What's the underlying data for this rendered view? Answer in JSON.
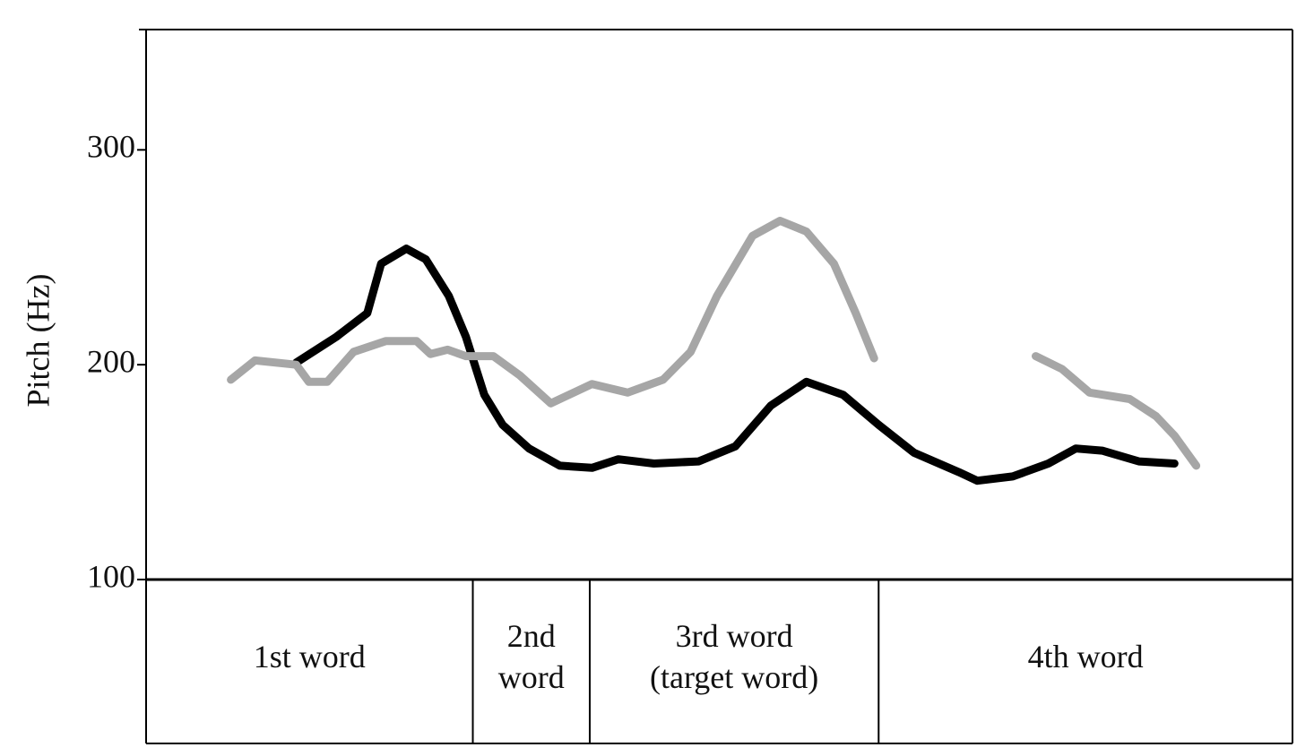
{
  "chart_data": {
    "type": "line",
    "y_label": "Pitch (Hz)",
    "ylim": [
      100,
      356
    ],
    "yticks": [
      100,
      200,
      300
    ],
    "xlim": [
      0,
      1
    ],
    "series": [
      {
        "color": "#000000",
        "x": [
          0.131,
          0.166,
          0.193,
          0.205,
          0.227,
          0.244,
          0.264,
          0.279,
          0.295,
          0.311,
          0.334,
          0.361,
          0.389,
          0.412,
          0.443,
          0.482,
          0.514,
          0.545,
          0.576,
          0.608,
          0.639,
          0.67,
          0.709,
          0.725,
          0.756,
          0.787,
          0.811,
          0.834,
          0.866,
          0.897
        ],
        "values": [
          201,
          213,
          224,
          247,
          254,
          249,
          232,
          213,
          186,
          172,
          161,
          153,
          152,
          156,
          154,
          155,
          162,
          181,
          192,
          186,
          172,
          159,
          150,
          146,
          148,
          154,
          161,
          160,
          155,
          154
        ]
      },
      {
        "color": "#a6a6a6",
        "x": [
          0.074,
          0.095,
          0.131,
          0.142,
          0.158,
          0.181,
          0.209,
          0.236,
          0.248,
          0.263,
          0.279,
          0.303,
          0.326,
          0.353,
          0.389,
          0.42,
          0.451,
          0.475,
          0.498,
          0.529,
          0.553,
          0.576,
          0.6,
          0.619,
          0.635,
          null,
          0.776,
          0.799,
          0.823,
          0.858,
          0.881,
          0.897,
          0.916
        ],
        "values": [
          193,
          202,
          200,
          192,
          192,
          206,
          211,
          211,
          205,
          207,
          204,
          204,
          195,
          182,
          191,
          187,
          193,
          206,
          232,
          260,
          267,
          262,
          247,
          224,
          203,
          null,
          204,
          198,
          187,
          184,
          176,
          167,
          153
        ]
      }
    ],
    "segments": [
      {
        "lines": [
          "1st word"
        ],
        "end": 0.285
      },
      {
        "lines": [
          "2nd",
          "word"
        ],
        "end": 0.387
      },
      {
        "lines": [
          "3rd word",
          "(target word)"
        ],
        "end": 0.639
      },
      {
        "lines": [
          "4th word"
        ],
        "end": 1
      }
    ]
  }
}
